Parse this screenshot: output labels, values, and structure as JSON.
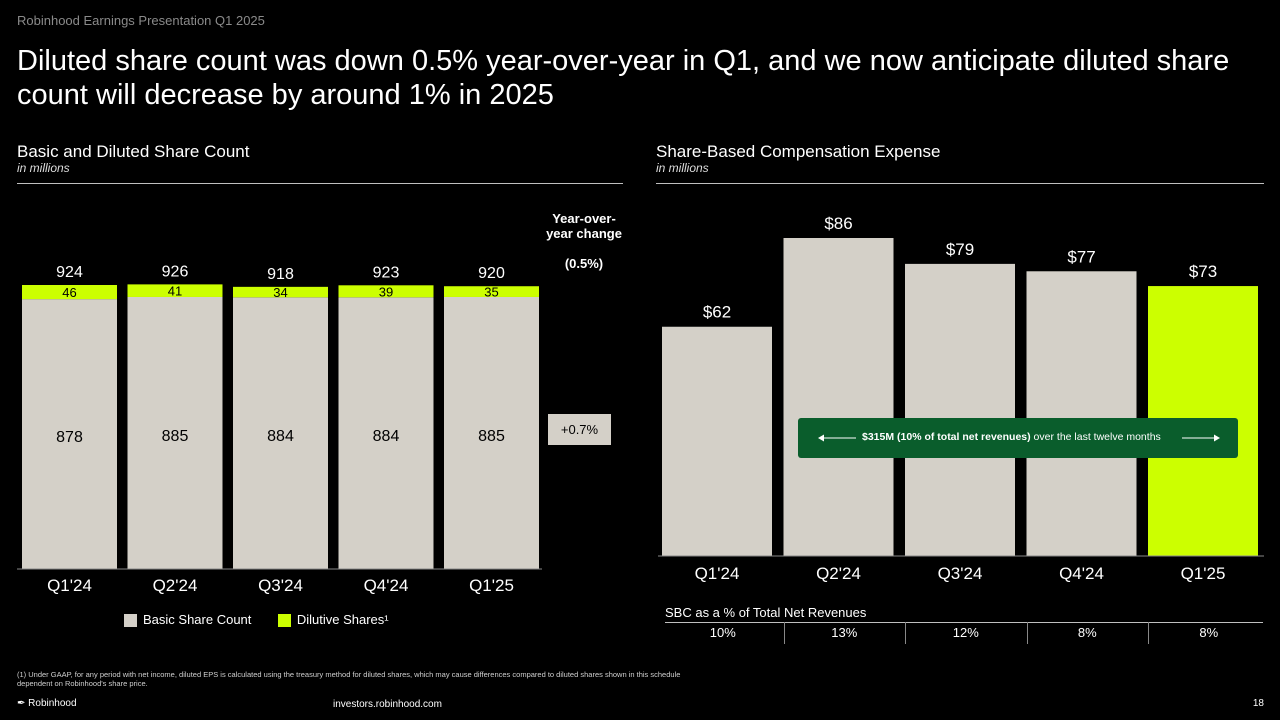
{
  "header": {
    "presentation_title": "Robinhood Earnings Presentation Q1 2025",
    "headline": "Diluted share count was down 0.5% year-over-year in Q1, and we now anticipate diluted share count will decrease by around 1% in 2025"
  },
  "colors": {
    "basic": "#d4d0c8",
    "dilutive": "#ccff00",
    "banner": "#0a5d2c",
    "background": "#000000"
  },
  "left_chart": {
    "title": "Basic and Diluted Share Count",
    "subtitle": "in millions",
    "yoy_header": "Year-over-year change",
    "yoy_total": "(0.5%)",
    "yoy_basic": "+0.7%",
    "legend": {
      "basic": "Basic Share Count",
      "dilutive": "Dilutive Shares¹"
    }
  },
  "right_chart": {
    "title": "Share-Based Compensation Expense",
    "subtitle": "in millions",
    "banner_bold": "$315M (10% of total net revenues)",
    "banner_rest": " over the last twelve months",
    "sbc_pct_label": "SBC as a % of Total Net Revenues",
    "sbc_pct": [
      "10%",
      "13%",
      "12%",
      "8%",
      "8%"
    ]
  },
  "chart_data": [
    {
      "type": "bar",
      "stacked": true,
      "title": "Basic and Diluted Share Count",
      "categories": [
        "Q1'24",
        "Q2'24",
        "Q3'24",
        "Q4'24",
        "Q1'25"
      ],
      "series": [
        {
          "name": "Basic Share Count",
          "values": [
            878,
            885,
            884,
            884,
            885
          ]
        },
        {
          "name": "Dilutive Shares¹",
          "values": [
            46,
            41,
            34,
            39,
            35
          ]
        }
      ],
      "totals": [
        924,
        926,
        918,
        923,
        920
      ],
      "ylim": [
        0,
        924
      ]
    },
    {
      "type": "bar",
      "title": "Share-Based Compensation Expense",
      "categories": [
        "Q1'24",
        "Q2'24",
        "Q3'24",
        "Q4'24",
        "Q1'25"
      ],
      "values": [
        62,
        86,
        79,
        77,
        73
      ],
      "labels": [
        "$62",
        "$86",
        "$79",
        "$77",
        "$73"
      ],
      "ylim": [
        0,
        86
      ]
    }
  ],
  "footer": {
    "footnote": "(1) Under GAAP, for any period with net income, diluted EPS is calculated using the treasury method for diluted shares, which may cause differences compared to diluted shares shown in this schedule dependent on Robinhood's share price.",
    "brand": "Robinhood",
    "site": "investors.robinhood.com",
    "page": "18"
  }
}
